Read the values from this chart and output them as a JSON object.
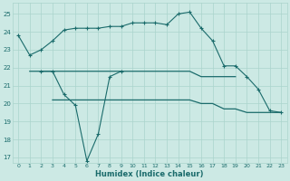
{
  "xlabel": "Humidex (Indice chaleur)",
  "xlim": [
    -0.5,
    23.5
  ],
  "ylim": [
    16.7,
    25.6
  ],
  "yticks": [
    17,
    18,
    19,
    20,
    21,
    22,
    23,
    24,
    25
  ],
  "xticks": [
    0,
    1,
    2,
    3,
    4,
    5,
    6,
    7,
    8,
    9,
    10,
    11,
    12,
    13,
    14,
    15,
    16,
    17,
    18,
    19,
    20,
    21,
    22,
    23
  ],
  "bg_color": "#cce9e4",
  "grid_color": "#aad4cc",
  "line_color": "#1a6b6b",
  "line_a_x": [
    0,
    1,
    2,
    3,
    4,
    5,
    6,
    7,
    8,
    9,
    10,
    11,
    12,
    13,
    14,
    15,
    16,
    17,
    18,
    19,
    20,
    21,
    22,
    23
  ],
  "line_a_y": [
    23.8,
    22.7,
    23.0,
    23.5,
    24.1,
    24.2,
    24.2,
    24.2,
    24.3,
    24.3,
    24.5,
    24.5,
    24.5,
    24.4,
    25.0,
    25.1,
    24.2,
    23.5,
    22.1,
    22.1,
    21.5,
    20.8,
    19.6,
    19.5
  ],
  "line_b_x": [
    2,
    3,
    4,
    5,
    6,
    7,
    8,
    9
  ],
  "line_b_y": [
    21.8,
    21.8,
    20.5,
    19.9,
    16.8,
    18.3,
    21.5,
    21.8
  ],
  "line_c_x": [
    1,
    2,
    3,
    4,
    5,
    6,
    7,
    8,
    9,
    10,
    11,
    12,
    13,
    14,
    15,
    16,
    17,
    18,
    19
  ],
  "line_c_y": [
    21.8,
    21.8,
    21.8,
    21.8,
    21.8,
    21.8,
    21.8,
    21.8,
    21.8,
    21.8,
    21.8,
    21.8,
    21.8,
    21.8,
    21.8,
    21.5,
    21.5,
    21.5,
    21.5
  ],
  "line_d_x": [
    3,
    4,
    5,
    6,
    7,
    8,
    9,
    10,
    11,
    12,
    13,
    14,
    15,
    16,
    17,
    18,
    19,
    20,
    21,
    22,
    23
  ],
  "line_d_y": [
    20.2,
    20.2,
    20.2,
    20.2,
    20.2,
    20.2,
    20.2,
    20.2,
    20.2,
    20.2,
    20.2,
    20.2,
    20.2,
    20.0,
    20.0,
    19.7,
    19.7,
    19.5,
    19.5,
    19.5,
    19.5
  ]
}
